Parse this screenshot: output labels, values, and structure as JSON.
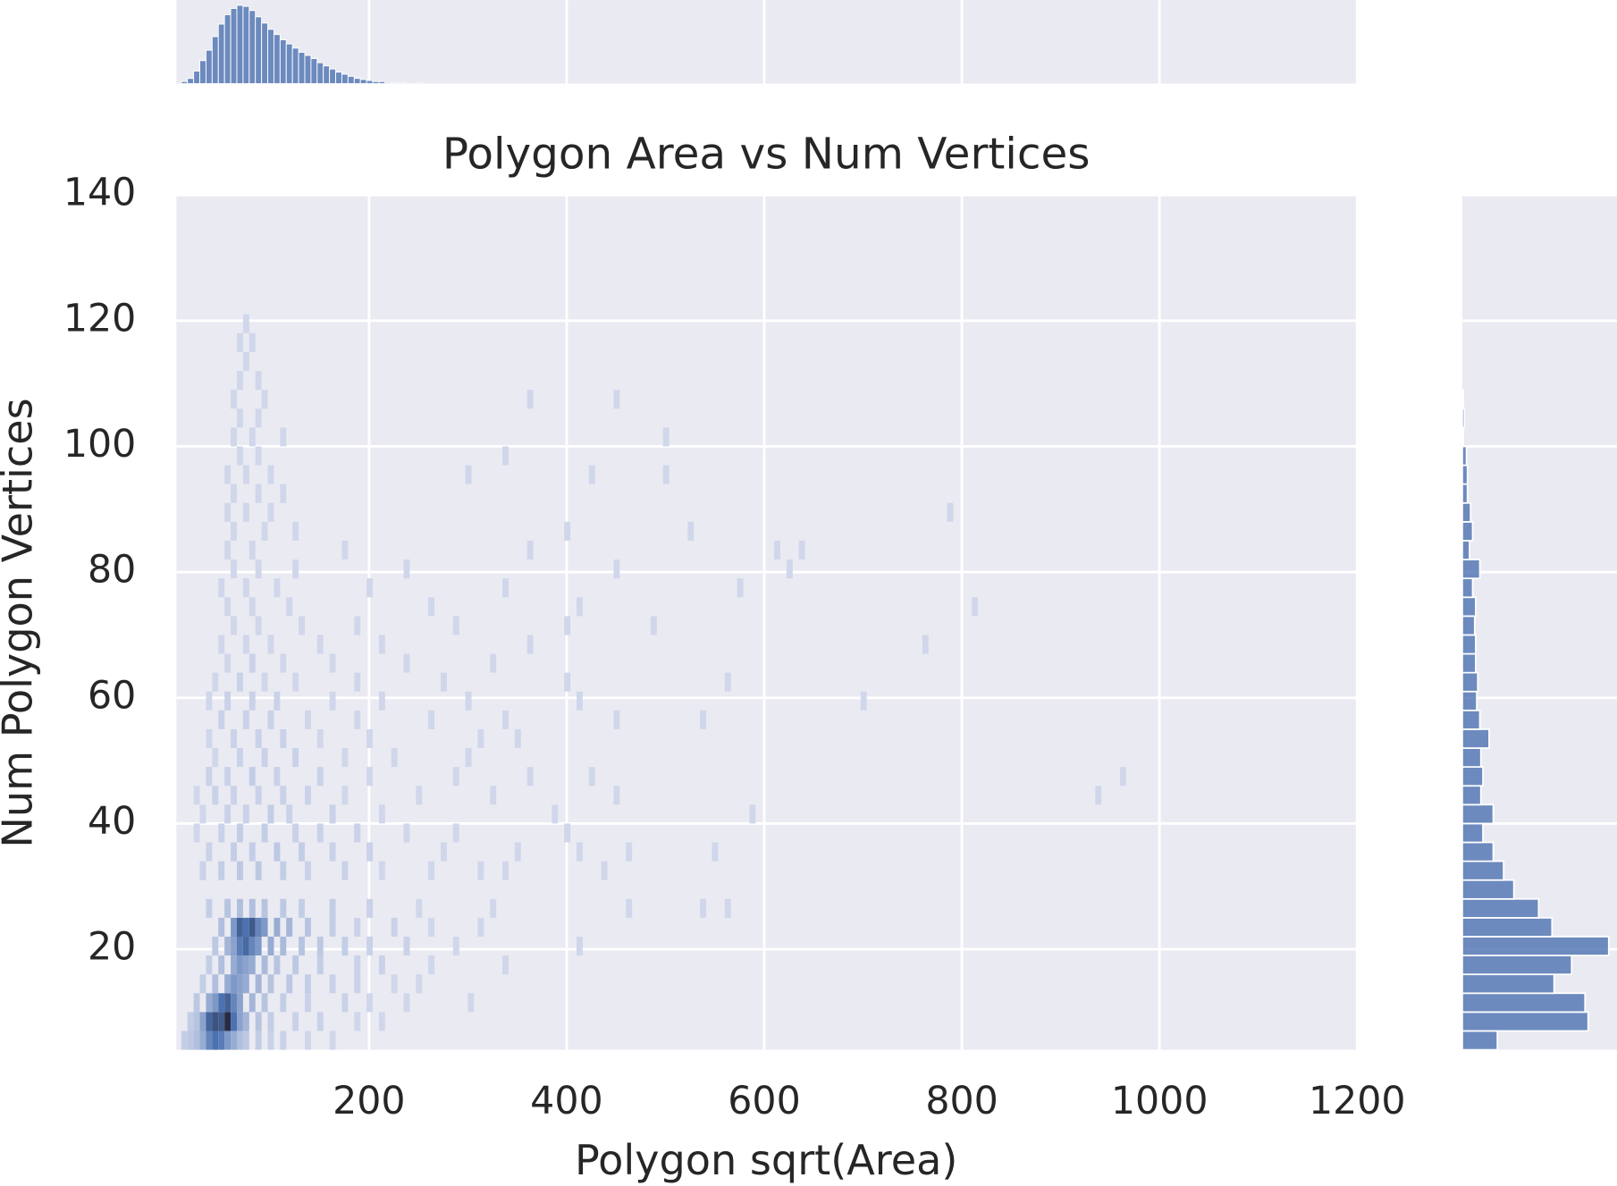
{
  "chart_data": {
    "type": "hist2d",
    "title": "Polygon Area vs Num Vertices",
    "xlabel": "Polygon sqrt(Area)",
    "ylabel": "Num Polygon Vertices",
    "xlim": [
      5,
      1200
    ],
    "ylim": [
      4,
      140
    ],
    "xticks": [
      200,
      400,
      600,
      800,
      1000,
      1200
    ],
    "yticks": [
      20,
      40,
      60,
      80,
      100,
      120,
      140
    ],
    "grid": true,
    "color": "#4c72b0",
    "xbin_width": 6.25,
    "ybin_width": 3,
    "cells": [
      [
        10,
        4,
        3
      ],
      [
        16.25,
        4,
        4
      ],
      [
        22.5,
        4,
        6
      ],
      [
        28.75,
        4,
        10
      ],
      [
        35,
        4,
        18
      ],
      [
        41.25,
        4,
        22
      ],
      [
        47.5,
        4,
        20
      ],
      [
        53.75,
        4,
        14
      ],
      [
        60,
        4,
        10
      ],
      [
        66.25,
        4,
        6
      ],
      [
        72.5,
        4,
        4
      ],
      [
        85,
        4,
        3
      ],
      [
        97.5,
        4,
        2
      ],
      [
        110,
        4,
        2
      ],
      [
        135,
        4,
        1
      ],
      [
        160,
        4,
        1
      ],
      [
        16.25,
        7,
        3
      ],
      [
        22.5,
        7,
        5
      ],
      [
        28.75,
        7,
        12
      ],
      [
        35,
        7,
        25
      ],
      [
        41.25,
        7,
        30
      ],
      [
        47.5,
        7,
        28
      ],
      [
        53.75,
        7,
        40
      ],
      [
        60,
        7,
        22
      ],
      [
        66.25,
        7,
        12
      ],
      [
        72.5,
        7,
        8
      ],
      [
        85,
        7,
        5
      ],
      [
        97.5,
        7,
        3
      ],
      [
        122.5,
        7,
        2
      ],
      [
        147.5,
        7,
        2
      ],
      [
        185,
        7,
        1
      ],
      [
        210,
        7,
        1
      ],
      [
        22.5,
        10,
        4
      ],
      [
        35,
        10,
        10
      ],
      [
        41.25,
        10,
        14
      ],
      [
        47.5,
        10,
        22
      ],
      [
        53.75,
        10,
        26
      ],
      [
        60,
        10,
        18
      ],
      [
        66.25,
        10,
        12
      ],
      [
        78.75,
        10,
        8
      ],
      [
        91.25,
        10,
        5
      ],
      [
        110,
        10,
        3
      ],
      [
        135,
        10,
        2
      ],
      [
        172.5,
        10,
        2
      ],
      [
        197.5,
        10,
        1
      ],
      [
        235,
        10,
        1
      ],
      [
        300,
        10,
        1
      ],
      [
        28.75,
        13,
        3
      ],
      [
        41.25,
        13,
        6
      ],
      [
        53.75,
        13,
        10
      ],
      [
        60,
        13,
        14
      ],
      [
        66.25,
        13,
        12
      ],
      [
        72.5,
        13,
        10
      ],
      [
        85,
        13,
        8
      ],
      [
        97.5,
        13,
        5
      ],
      [
        116.25,
        13,
        4
      ],
      [
        135,
        13,
        3
      ],
      [
        160,
        13,
        2
      ],
      [
        185,
        13,
        2
      ],
      [
        222.5,
        13,
        1
      ],
      [
        247.5,
        13,
        1
      ],
      [
        35,
        16,
        3
      ],
      [
        47.5,
        16,
        6
      ],
      [
        60,
        16,
        10
      ],
      [
        66.25,
        16,
        14
      ],
      [
        72.5,
        16,
        12
      ],
      [
        78.75,
        16,
        10
      ],
      [
        91.25,
        16,
        7
      ],
      [
        103.75,
        16,
        5
      ],
      [
        122.5,
        16,
        4
      ],
      [
        147.5,
        16,
        3
      ],
      [
        185,
        16,
        2
      ],
      [
        210,
        16,
        2
      ],
      [
        260,
        16,
        1
      ],
      [
        335,
        16,
        1
      ],
      [
        41.25,
        19,
        4
      ],
      [
        53.75,
        19,
        8
      ],
      [
        60,
        19,
        12
      ],
      [
        66.25,
        19,
        20
      ],
      [
        72.5,
        19,
        24
      ],
      [
        78.75,
        19,
        18
      ],
      [
        85,
        19,
        14
      ],
      [
        97.5,
        19,
        10
      ],
      [
        110,
        19,
        7
      ],
      [
        128.75,
        19,
        5
      ],
      [
        147.5,
        19,
        4
      ],
      [
        172.5,
        19,
        3
      ],
      [
        197.5,
        19,
        2
      ],
      [
        235,
        19,
        2
      ],
      [
        285,
        19,
        1
      ],
      [
        410,
        19,
        1
      ],
      [
        47.5,
        22,
        6
      ],
      [
        60,
        22,
        14
      ],
      [
        66.25,
        22,
        26
      ],
      [
        72.5,
        22,
        22
      ],
      [
        78.75,
        22,
        28
      ],
      [
        85,
        22,
        18
      ],
      [
        91.25,
        22,
        14
      ],
      [
        103.75,
        22,
        10
      ],
      [
        116.25,
        22,
        8
      ],
      [
        135,
        22,
        5
      ],
      [
        160,
        22,
        3
      ],
      [
        185,
        22,
        2
      ],
      [
        222.5,
        22,
        2
      ],
      [
        260,
        22,
        1
      ],
      [
        310,
        22,
        1
      ],
      [
        35,
        25,
        3
      ],
      [
        53.75,
        25,
        5
      ],
      [
        66.25,
        25,
        6
      ],
      [
        78.75,
        25,
        6
      ],
      [
        91.25,
        25,
        5
      ],
      [
        110,
        25,
        4
      ],
      [
        128.75,
        25,
        3
      ],
      [
        160,
        25,
        3
      ],
      [
        197.5,
        25,
        2
      ],
      [
        247.5,
        25,
        1
      ],
      [
        322.5,
        25,
        1
      ],
      [
        460,
        25,
        1
      ],
      [
        535,
        25,
        1
      ],
      [
        560,
        25,
        1
      ],
      [
        28.75,
        31,
        2
      ],
      [
        47.5,
        31,
        3
      ],
      [
        66.25,
        31,
        4
      ],
      [
        85,
        31,
        4
      ],
      [
        110,
        31,
        3
      ],
      [
        135,
        31,
        2
      ],
      [
        172.5,
        31,
        2
      ],
      [
        210,
        31,
        1
      ],
      [
        260,
        31,
        1
      ],
      [
        310,
        31,
        1
      ],
      [
        335,
        31,
        1
      ],
      [
        435,
        31,
        1
      ],
      [
        35,
        34,
        2
      ],
      [
        60,
        34,
        3
      ],
      [
        78.75,
        34,
        3
      ],
      [
        103.75,
        34,
        4
      ],
      [
        128.75,
        34,
        3
      ],
      [
        160,
        34,
        2
      ],
      [
        197.5,
        34,
        2
      ],
      [
        272.5,
        34,
        1
      ],
      [
        347.5,
        34,
        1
      ],
      [
        410,
        34,
        1
      ],
      [
        460,
        34,
        1
      ],
      [
        547,
        34,
        1
      ],
      [
        22.5,
        37,
        1
      ],
      [
        47.5,
        37,
        2
      ],
      [
        66.25,
        37,
        3
      ],
      [
        91.25,
        37,
        3
      ],
      [
        122.5,
        37,
        2
      ],
      [
        147.5,
        37,
        2
      ],
      [
        185,
        37,
        2
      ],
      [
        235,
        37,
        1
      ],
      [
        285,
        37,
        1
      ],
      [
        397.5,
        37,
        1
      ],
      [
        28.75,
        40,
        1
      ],
      [
        53.75,
        40,
        2
      ],
      [
        72.5,
        40,
        2
      ],
      [
        97.5,
        40,
        3
      ],
      [
        116.25,
        40,
        2
      ],
      [
        160,
        40,
        2
      ],
      [
        210,
        40,
        1
      ],
      [
        385,
        40,
        1
      ],
      [
        585,
        40,
        1
      ],
      [
        22.5,
        43,
        1
      ],
      [
        41.25,
        43,
        2
      ],
      [
        60,
        43,
        2
      ],
      [
        85,
        43,
        2
      ],
      [
        110,
        43,
        2
      ],
      [
        135,
        43,
        2
      ],
      [
        172.5,
        43,
        1
      ],
      [
        247.5,
        43,
        1
      ],
      [
        322.5,
        43,
        1
      ],
      [
        447.5,
        43,
        1
      ],
      [
        935,
        43,
        1
      ],
      [
        35,
        46,
        2
      ],
      [
        53.75,
        46,
        2
      ],
      [
        78.75,
        46,
        3
      ],
      [
        103.75,
        46,
        2
      ],
      [
        147.5,
        46,
        2
      ],
      [
        197.5,
        46,
        1
      ],
      [
        285,
        46,
        1
      ],
      [
        360,
        46,
        1
      ],
      [
        422.5,
        46,
        1
      ],
      [
        960,
        46,
        1
      ],
      [
        41.25,
        49,
        1
      ],
      [
        66.25,
        49,
        2
      ],
      [
        91.25,
        49,
        2
      ],
      [
        122.5,
        49,
        2
      ],
      [
        172.5,
        49,
        1
      ],
      [
        222.5,
        49,
        1
      ],
      [
        297.5,
        49,
        1
      ],
      [
        35,
        52,
        1
      ],
      [
        60,
        52,
        2
      ],
      [
        85,
        52,
        2
      ],
      [
        110,
        52,
        2
      ],
      [
        147.5,
        52,
        1
      ],
      [
        197.5,
        52,
        1
      ],
      [
        310,
        52,
        1
      ],
      [
        347.5,
        52,
        1
      ],
      [
        47.5,
        55,
        2
      ],
      [
        72.5,
        55,
        2
      ],
      [
        97.5,
        55,
        2
      ],
      [
        135,
        55,
        1
      ],
      [
        185,
        55,
        1
      ],
      [
        260,
        55,
        1
      ],
      [
        335,
        55,
        1
      ],
      [
        447.5,
        55,
        1
      ],
      [
        535,
        55,
        1
      ],
      [
        35,
        58,
        1
      ],
      [
        53.75,
        58,
        2
      ],
      [
        78.75,
        58,
        2
      ],
      [
        103.75,
        58,
        2
      ],
      [
        160,
        58,
        1
      ],
      [
        210,
        58,
        1
      ],
      [
        297.5,
        58,
        1
      ],
      [
        410,
        58,
        1
      ],
      [
        697.5,
        58,
        1
      ],
      [
        41.25,
        61,
        1
      ],
      [
        66.25,
        61,
        2
      ],
      [
        91.25,
        61,
        1
      ],
      [
        122.5,
        61,
        1
      ],
      [
        185,
        61,
        1
      ],
      [
        272.5,
        61,
        1
      ],
      [
        397.5,
        61,
        1
      ],
      [
        560,
        61,
        1
      ],
      [
        53.75,
        64,
        1
      ],
      [
        78.75,
        64,
        2
      ],
      [
        110,
        64,
        1
      ],
      [
        160,
        64,
        1
      ],
      [
        235,
        64,
        1
      ],
      [
        322.5,
        64,
        1
      ],
      [
        47.5,
        67,
        1
      ],
      [
        72.5,
        67,
        1
      ],
      [
        97.5,
        67,
        1
      ],
      [
        147.5,
        67,
        1
      ],
      [
        210,
        67,
        1
      ],
      [
        360,
        67,
        1
      ],
      [
        760,
        67,
        1
      ],
      [
        60,
        70,
        1
      ],
      [
        85,
        70,
        1
      ],
      [
        128.75,
        70,
        1
      ],
      [
        185,
        70,
        1
      ],
      [
        285,
        70,
        1
      ],
      [
        397.5,
        70,
        1
      ],
      [
        485,
        70,
        1
      ],
      [
        53.75,
        73,
        1
      ],
      [
        78.75,
        73,
        1
      ],
      [
        116.25,
        73,
        1
      ],
      [
        260,
        73,
        1
      ],
      [
        410,
        73,
        1
      ],
      [
        810,
        73,
        1
      ],
      [
        47.5,
        76,
        1
      ],
      [
        72.5,
        76,
        1
      ],
      [
        103.75,
        76,
        1
      ],
      [
        197.5,
        76,
        1
      ],
      [
        335,
        76,
        1
      ],
      [
        572.5,
        76,
        1
      ],
      [
        60,
        79,
        1
      ],
      [
        85,
        79,
        1
      ],
      [
        122.5,
        79,
        1
      ],
      [
        235,
        79,
        1
      ],
      [
        447.5,
        79,
        1
      ],
      [
        622.5,
        79,
        1
      ],
      [
        53.75,
        82,
        1
      ],
      [
        78.75,
        82,
        1
      ],
      [
        172.5,
        82,
        1
      ],
      [
        360,
        82,
        1
      ],
      [
        610,
        82,
        1
      ],
      [
        635,
        82,
        1
      ],
      [
        60,
        85,
        1
      ],
      [
        91.25,
        85,
        1
      ],
      [
        122.5,
        85,
        1
      ],
      [
        397.5,
        85,
        1
      ],
      [
        522.5,
        85,
        1
      ],
      [
        53.75,
        88,
        1
      ],
      [
        72.5,
        88,
        1
      ],
      [
        97.5,
        88,
        1
      ],
      [
        785,
        88,
        1
      ],
      [
        60,
        91,
        1
      ],
      [
        85,
        91,
        1
      ],
      [
        110,
        91,
        1
      ],
      [
        53.75,
        94,
        1
      ],
      [
        72.5,
        94,
        1
      ],
      [
        97.5,
        94,
        1
      ],
      [
        297.5,
        94,
        1
      ],
      [
        422.5,
        94,
        1
      ],
      [
        497.5,
        94,
        1
      ],
      [
        66.25,
        97,
        1
      ],
      [
        85,
        97,
        1
      ],
      [
        335,
        97,
        1
      ],
      [
        60,
        100,
        1
      ],
      [
        78.75,
        100,
        1
      ],
      [
        110,
        100,
        1
      ],
      [
        497.5,
        100,
        1
      ],
      [
        66.25,
        103,
        1
      ],
      [
        85,
        103,
        1
      ],
      [
        60,
        106,
        1
      ],
      [
        91.25,
        106,
        1
      ],
      [
        360,
        106,
        1
      ],
      [
        447.5,
        106,
        1
      ],
      [
        66.25,
        109,
        1
      ],
      [
        85,
        109,
        1
      ],
      [
        72.5,
        112,
        1
      ],
      [
        66.25,
        115,
        1
      ],
      [
        78.75,
        115,
        1
      ],
      [
        72.5,
        118,
        1
      ]
    ],
    "top_hist": {
      "count_lim": [
        0,
        80
      ],
      "bins": [
        10,
        16.25,
        22.5,
        28.75,
        35,
        41.25,
        47.5,
        53.75,
        60,
        66.25,
        72.5,
        78.75,
        85,
        91.25,
        97.5,
        103.75,
        110,
        116.25,
        122.5,
        128.75,
        135,
        141.25,
        147.5,
        153.75,
        160,
        166.25,
        172.5,
        178.75,
        185,
        191.25,
        197.5,
        203.75,
        210,
        216.25,
        222.5,
        228.75,
        235,
        241.25,
        247.5,
        253.75,
        260
      ],
      "counts": [
        2,
        5,
        12,
        22,
        32,
        45,
        57,
        66,
        72,
        75,
        74,
        70,
        64,
        58,
        52,
        47,
        42,
        38,
        34,
        30,
        27,
        24,
        20,
        17,
        14,
        11,
        9,
        7,
        5,
        4,
        3,
        2,
        2,
        1,
        1,
        1,
        1,
        0,
        1,
        0
      ]
    },
    "right_hist": {
      "count_lim": [
        0,
        150
      ],
      "bins": [
        4,
        7,
        10,
        13,
        16,
        19,
        22,
        25,
        28,
        31,
        34,
        37,
        40,
        43,
        46,
        49,
        52,
        55,
        58,
        61,
        64,
        67,
        70,
        73,
        76,
        79,
        82,
        85,
        88,
        91,
        94,
        97,
        100,
        103,
        106,
        109
      ],
      "counts": [
        34,
        122,
        119,
        89,
        106,
        142,
        87,
        74,
        50,
        40,
        30,
        20,
        30,
        18,
        20,
        18,
        26,
        17,
        14,
        15,
        13,
        13,
        12,
        13,
        10,
        17,
        7,
        10,
        8,
        5,
        5,
        4,
        1,
        2,
        1
      ]
    }
  }
}
